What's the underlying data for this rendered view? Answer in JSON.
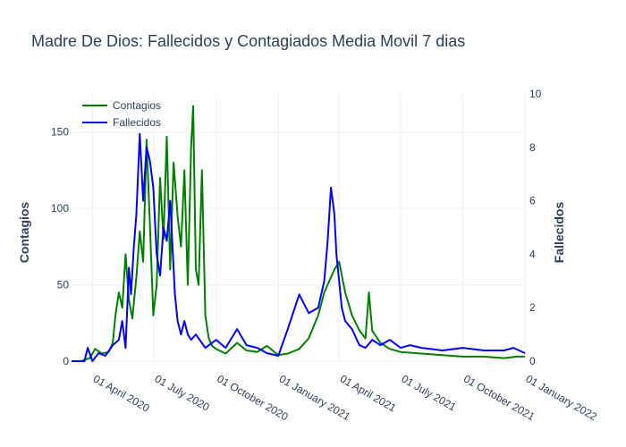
{
  "chart_data": {
    "type": "line",
    "title": "Madre De Dios: Fallecidos y Contagiados Media Movil 7 dias",
    "xlabel": "",
    "ylabel": "Contagios",
    "y2label": "Fallecidos",
    "x_ticks": [
      "01 April 2020",
      "01 July 2020",
      "01 October 2020",
      "01 January 2021",
      "01 April 2021",
      "01 July 2021",
      "01 October 2021",
      "01 January 2022"
    ],
    "y_ticks": [
      "0",
      "50",
      "100",
      "150"
    ],
    "y2_ticks": [
      "0",
      "2",
      "4",
      "6",
      "8",
      "10"
    ],
    "ylim": [
      0,
      175
    ],
    "y2lim": [
      0,
      10
    ],
    "xlim": [
      "2020-03-01",
      "2022-01-01"
    ],
    "grid": true,
    "legend_position": "top-left",
    "series": [
      {
        "name": "Contagios",
        "axis": "y",
        "color": "#008000",
        "x": [
          "2020-03-01",
          "2020-03-15",
          "2020-03-28",
          "2020-04-05",
          "2020-04-15",
          "2020-04-25",
          "2020-05-01",
          "2020-05-05",
          "2020-05-10",
          "2020-05-15",
          "2020-05-20",
          "2020-05-25",
          "2020-05-30",
          "2020-06-05",
          "2020-06-10",
          "2020-06-15",
          "2020-06-20",
          "2020-06-25",
          "2020-06-30",
          "2020-07-05",
          "2020-07-10",
          "2020-07-15",
          "2020-07-20",
          "2020-07-25",
          "2020-07-30",
          "2020-08-05",
          "2020-08-10",
          "2020-08-15",
          "2020-08-20",
          "2020-08-25",
          "2020-08-28",
          "2020-09-01",
          "2020-09-05",
          "2020-09-10",
          "2020-09-15",
          "2020-09-20",
          "2020-09-25",
          "2020-10-01",
          "2020-10-15",
          "2020-11-01",
          "2020-11-15",
          "2020-12-01",
          "2020-12-15",
          "2021-01-01",
          "2021-01-15",
          "2021-02-01",
          "2021-02-15",
          "2021-03-01",
          "2021-03-10",
          "2021-03-20",
          "2021-03-25",
          "2021-04-01",
          "2021-04-10",
          "2021-04-20",
          "2021-05-01",
          "2021-05-10",
          "2021-05-15",
          "2021-05-20",
          "2021-06-01",
          "2021-06-15",
          "2021-07-01",
          "2021-08-01",
          "2021-09-01",
          "2021-10-01",
          "2021-11-01",
          "2021-12-01",
          "2021-12-20",
          "2022-01-01"
        ],
        "values": [
          0,
          0,
          2,
          8,
          5,
          6,
          12,
          30,
          45,
          35,
          70,
          40,
          28,
          55,
          85,
          65,
          145,
          90,
          30,
          50,
          120,
          80,
          147,
          60,
          130,
          95,
          75,
          125,
          50,
          140,
          167,
          60,
          50,
          125,
          30,
          15,
          10,
          8,
          5,
          12,
          7,
          6,
          10,
          4,
          5,
          8,
          15,
          30,
          45,
          55,
          60,
          65,
          45,
          30,
          20,
          15,
          45,
          20,
          12,
          8,
          6,
          5,
          4,
          3,
          3,
          2,
          3,
          3
        ]
      },
      {
        "name": "Fallecidos",
        "axis": "y2",
        "color": "#0000ff",
        "x": [
          "2020-03-01",
          "2020-03-20",
          "2020-03-25",
          "2020-04-01",
          "2020-04-10",
          "2020-04-20",
          "2020-05-01",
          "2020-05-10",
          "2020-05-15",
          "2020-05-20",
          "2020-05-25",
          "2020-05-28",
          "2020-06-01",
          "2020-06-05",
          "2020-06-10",
          "2020-06-15",
          "2020-06-20",
          "2020-06-25",
          "2020-06-30",
          "2020-07-05",
          "2020-07-10",
          "2020-07-15",
          "2020-07-20",
          "2020-07-25",
          "2020-08-01",
          "2020-08-05",
          "2020-08-10",
          "2020-08-15",
          "2020-08-20",
          "2020-08-25",
          "2020-09-01",
          "2020-09-15",
          "2020-10-01",
          "2020-10-15",
          "2020-11-01",
          "2020-11-15",
          "2020-12-01",
          "2020-12-15",
          "2021-01-01",
          "2021-01-15",
          "2021-02-01",
          "2021-02-15",
          "2021-03-01",
          "2021-03-10",
          "2021-03-15",
          "2021-03-20",
          "2021-03-25",
          "2021-03-28",
          "2021-04-01",
          "2021-04-05",
          "2021-04-10",
          "2021-04-20",
          "2021-05-01",
          "2021-05-10",
          "2021-05-20",
          "2021-06-01",
          "2021-06-15",
          "2021-07-01",
          "2021-07-15",
          "2021-08-01",
          "2021-09-01",
          "2021-10-01",
          "2021-11-01",
          "2021-12-01",
          "2021-12-15",
          "2022-01-01"
        ],
        "values": [
          0,
          0,
          0.5,
          0,
          0.3,
          0.2,
          0.6,
          0.8,
          1.5,
          0.5,
          3.5,
          2.5,
          4.2,
          5.5,
          8.5,
          6,
          8,
          7.5,
          6.5,
          4,
          3.2,
          5,
          4.5,
          6,
          2.5,
          1.5,
          1,
          1.5,
          1,
          0.8,
          1,
          0.5,
          0.8,
          0.5,
          1.2,
          0.6,
          0.5,
          0.3,
          0.2,
          1.2,
          2.5,
          1.8,
          2,
          3,
          4.5,
          6.5,
          5.5,
          4,
          3,
          2,
          1.5,
          1.2,
          0.6,
          0.5,
          0.8,
          0.6,
          0.8,
          0.5,
          0.6,
          0.5,
          0.4,
          0.5,
          0.4,
          0.4,
          0.5,
          0.3
        ]
      }
    ]
  }
}
